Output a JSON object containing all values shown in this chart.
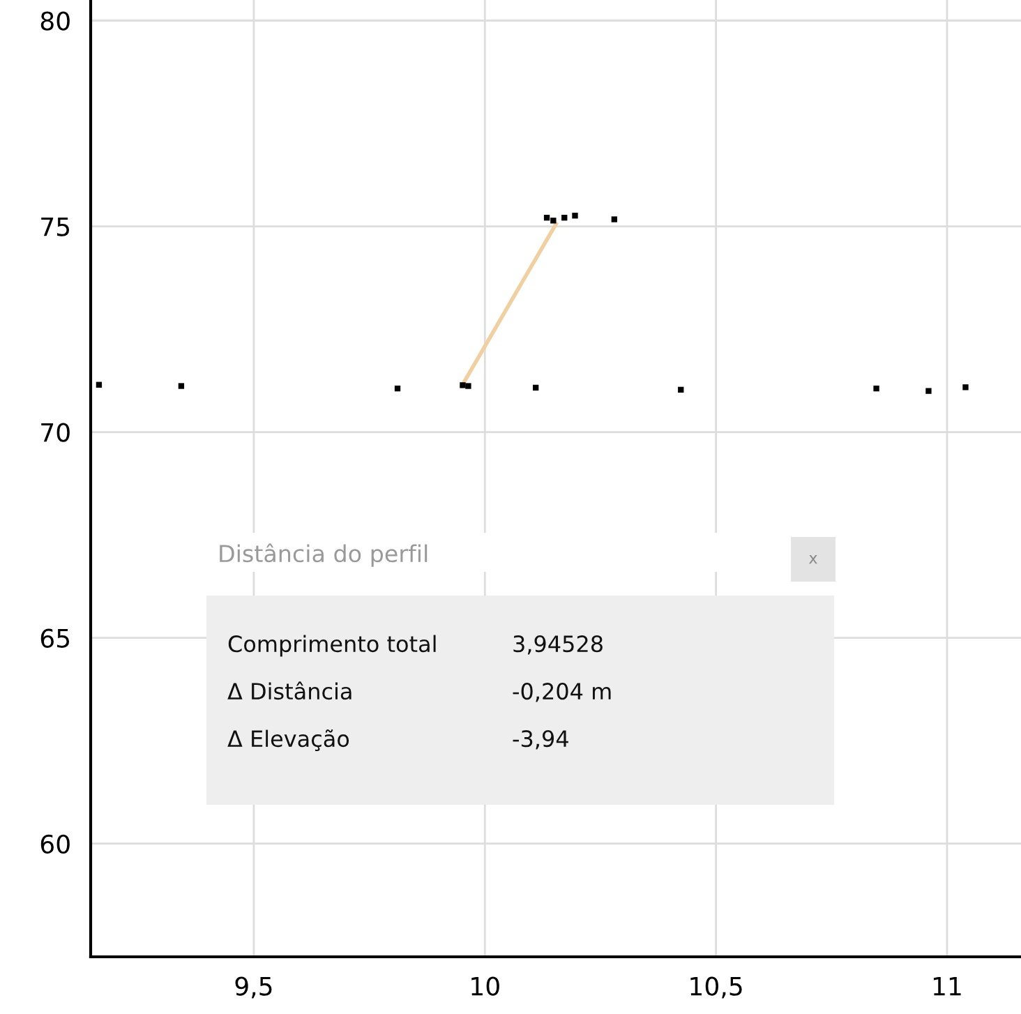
{
  "chart_data": {
    "type": "scatter",
    "xlim": [
      9.147,
      11.16
    ],
    "ylim": [
      57.25,
      80.5
    ],
    "xticks": [
      {
        "value": 9.5,
        "label": "9,5"
      },
      10,
      {
        "value": 10.5,
        "label": "10,5"
      },
      11
    ],
    "yticks": [
      60,
      65,
      70,
      75,
      80
    ],
    "grid": true,
    "series": [
      {
        "marker": "square",
        "color": "#000000",
        "x": [
          9.165,
          9.343,
          9.811,
          9.952,
          9.964,
          10.11,
          10.424,
          10.847,
          10.96,
          11.04,
          10.134,
          10.148,
          10.172,
          10.195,
          10.28
        ],
        "values": [
          71.15,
          71.12,
          71.06,
          71.14,
          71.12,
          71.08,
          71.03,
          71.06,
          71.0,
          71.09,
          75.21,
          75.14,
          75.21,
          75.26,
          75.17
        ]
      },
      {
        "type": "line",
        "marker": "none",
        "color": "#f0d0a0",
        "x": [
          9.95,
          10.154
        ],
        "values": [
          71.12,
          75.06
        ]
      }
    ],
    "annotations": [
      "Distância do perfil",
      "x",
      "Comprimento total",
      "3,94528",
      "Δ Distância",
      "-0,204 m",
      "Δ Elevação",
      "-3,94"
    ]
  }
}
